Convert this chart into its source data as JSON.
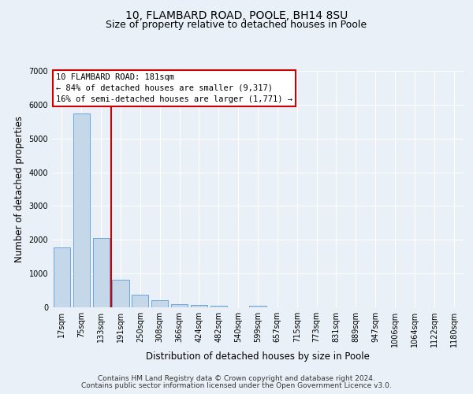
{
  "title_line1": "10, FLAMBARD ROAD, POOLE, BH14 8SU",
  "title_line2": "Size of property relative to detached houses in Poole",
  "xlabel": "Distribution of detached houses by size in Poole",
  "ylabel": "Number of detached properties",
  "bar_labels": [
    "17sqm",
    "75sqm",
    "133sqm",
    "191sqm",
    "250sqm",
    "308sqm",
    "366sqm",
    "424sqm",
    "482sqm",
    "540sqm",
    "599sqm",
    "657sqm",
    "715sqm",
    "773sqm",
    "831sqm",
    "889sqm",
    "947sqm",
    "1006sqm",
    "1064sqm",
    "1122sqm",
    "1180sqm"
  ],
  "bar_values": [
    1780,
    5750,
    2050,
    820,
    370,
    220,
    100,
    65,
    40,
    0,
    55,
    0,
    0,
    0,
    0,
    0,
    0,
    0,
    0,
    0,
    0
  ],
  "bar_color": "#c5d8ea",
  "bar_edge_color": "#5b9bd5",
  "vline_color": "#cc0000",
  "vline_position": 2.5,
  "ylim": [
    0,
    7000
  ],
  "yticks": [
    0,
    1000,
    2000,
    3000,
    4000,
    5000,
    6000,
    7000
  ],
  "annotation_title": "10 FLAMBARD ROAD: 181sqm",
  "annotation_line1": "← 84% of detached houses are smaller (9,317)",
  "annotation_line2": "16% of semi-detached houses are larger (1,771) →",
  "annotation_box_color": "#ffffff",
  "annotation_box_edge_color": "#cc0000",
  "footer_line1": "Contains HM Land Registry data © Crown copyright and database right 2024.",
  "footer_line2": "Contains public sector information licensed under the Open Government Licence v3.0.",
  "background_color": "#eaf0f7",
  "grid_color": "#ffffff",
  "title_fontsize": 10,
  "subtitle_fontsize": 9,
  "axis_label_fontsize": 8.5,
  "tick_fontsize": 7,
  "annotation_fontsize": 7.5,
  "footer_fontsize": 6.5
}
